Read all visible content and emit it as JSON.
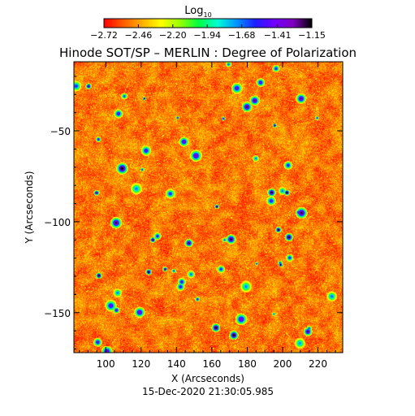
{
  "chart_data": {
    "type": "heatmap",
    "title": "Hinode SOT/SP – MERLIN : Degree of Polarization",
    "timestamp": "15-Dec-2020 21:30:05.985",
    "xlabel": "X (Arcseconds)",
    "ylabel": "Y (Arcseconds)",
    "xlim": [
      82,
      234
    ],
    "ylim": [
      -172,
      -12
    ],
    "x_ticks": [
      100,
      120,
      140,
      160,
      180,
      200,
      220
    ],
    "x_tick_labels": [
      "100",
      "120",
      "140",
      "160",
      "180",
      "200",
      "220"
    ],
    "y_ticks": [
      -50,
      -100,
      -150
    ],
    "y_tick_labels": [
      "−50",
      "−100",
      "−150"
    ],
    "colorbar": {
      "label_base": "Log",
      "label_sub": "10",
      "range": [
        -2.72,
        -1.15
      ],
      "ticks": [
        -2.72,
        -2.46,
        -2.2,
        -1.94,
        -1.68,
        -1.41,
        -1.15
      ],
      "tick_labels": [
        "−2.72",
        "−2.46",
        "−2.20",
        "−1.94",
        "−1.68",
        "−1.41",
        "−1.15"
      ],
      "colormap": [
        "#ff0000",
        "#ff5a00",
        "#ffae00",
        "#ffff00",
        "#9bff00",
        "#00ff40",
        "#00ffd2",
        "#0096ff",
        "#1e1eff",
        "#7000ff",
        "#8000c0",
        "#000000"
      ]
    },
    "map_summary": {
      "background_value_range": [
        -2.72,
        -2.46
      ],
      "dominant_colors": [
        "#ff5a00",
        "#ff8000",
        "#ff2000",
        "#ffc000"
      ],
      "speckle_colors": [
        "#ffff00",
        "#b0ff00"
      ],
      "feature_colors": [
        "#00c0ff",
        "#0000ff",
        "#000080"
      ]
    }
  }
}
